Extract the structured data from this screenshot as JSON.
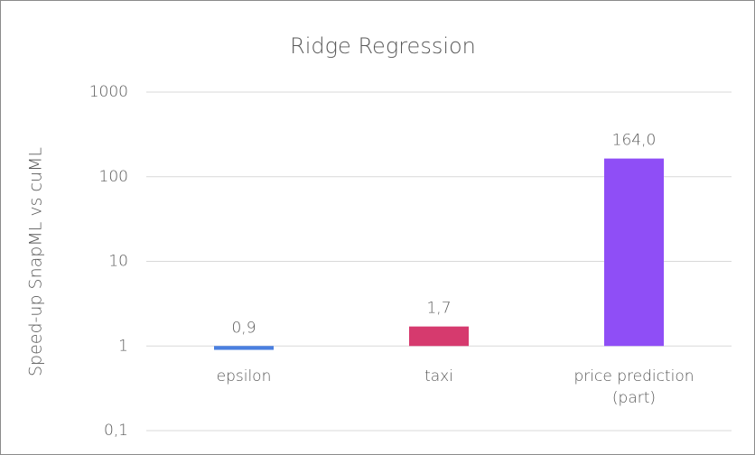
{
  "chart_data": {
    "type": "bar",
    "title": "Ridge Regression",
    "y_label": "Speed-up SnapML vs cuML",
    "categories": [
      "epsilon",
      "taxi",
      "price prediction (part)"
    ],
    "values": [
      0.9,
      1.7,
      164.0
    ],
    "value_labels": [
      "0,9",
      "1,7",
      "164,0"
    ],
    "colors": [
      "#4a7fe0",
      "#d63a6e",
      "#8f4ef6"
    ],
    "log_scale": true,
    "ylim": [
      0.1,
      1000
    ],
    "yticks": [
      {
        "value": 0.1,
        "label": "0,1"
      },
      1,
      10,
      100,
      1000
    ],
    "grid": true
  }
}
